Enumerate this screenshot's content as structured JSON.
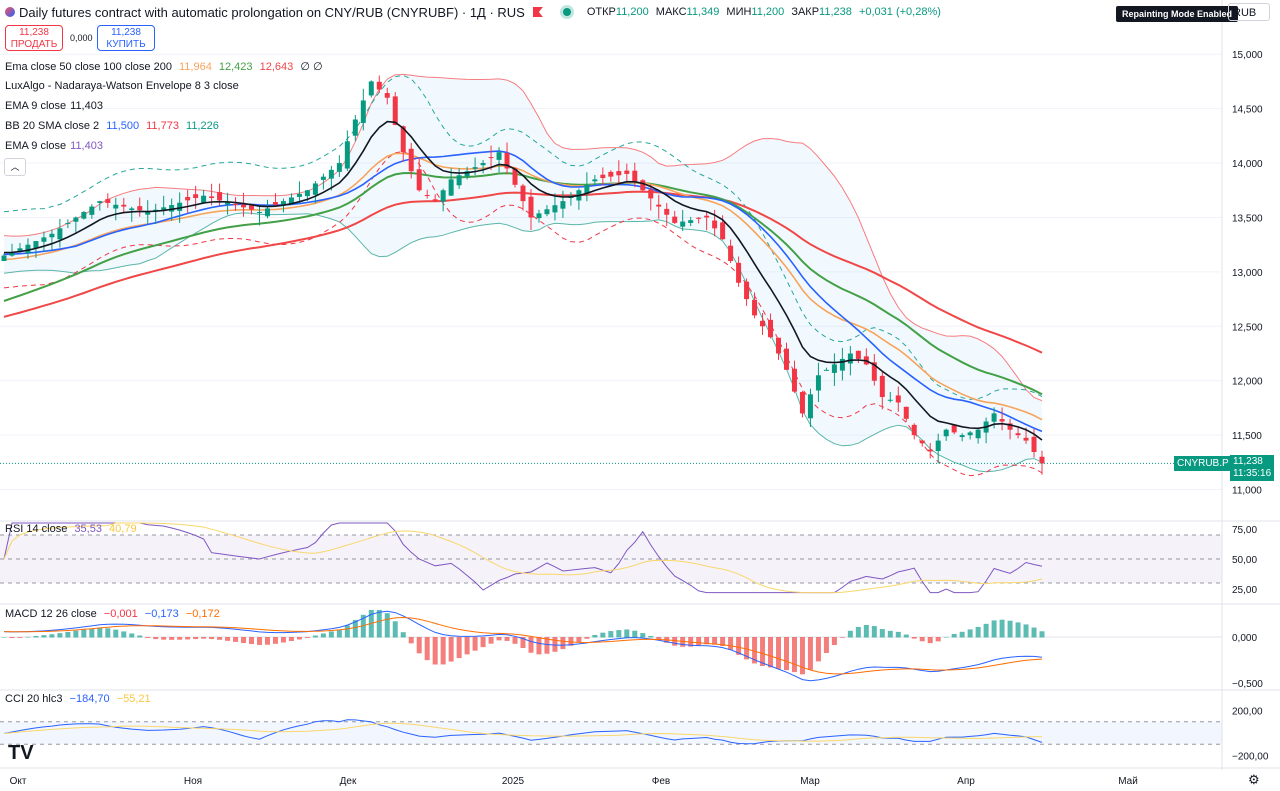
{
  "header": {
    "title": "Daily futures contract with automatic prolongation on CNY/RUB (CNYRUBF) · 1Д · RUS",
    "ohlc": [
      {
        "label": "ОТКР",
        "value": "11,200"
      },
      {
        "label": "МАКС",
        "value": "11,349"
      },
      {
        "label": "МИН",
        "value": "11,200"
      },
      {
        "label": "ЗАКР",
        "value": "11,238"
      }
    ],
    "change": "+0,031 (+0,28%)",
    "repaint_badge": "Repainting Mode Enabled",
    "currency": "RUB"
  },
  "trade": {
    "sell_price": "11,238",
    "sell_label": "ПРОДАТЬ",
    "spread": "0,000",
    "buy_price": "11,238",
    "buy_label": "КУПИТЬ"
  },
  "legends": {
    "ema_multi": {
      "label": "Ema close 50 close 100 close 200",
      "v1": "11,964",
      "v2": "12,423",
      "v3": "12,643",
      "v4": "∅ ∅"
    },
    "nw": {
      "label": "LuxAlgo - Nadaraya-Watson Envelope 8 3 close"
    },
    "ema9a": {
      "label": "EMA 9 close",
      "v1": "11,403"
    },
    "bb": {
      "label": "BB 20 SMA close 2",
      "v1": "11,500",
      "v2": "11,773",
      "v3": "11,226"
    },
    "ema9b": {
      "label": "EMA 9 close",
      "v1": "11,403"
    },
    "rsi": {
      "label": "RSI 14 close",
      "v1": "35,53",
      "v2": "40,79"
    },
    "macd": {
      "label": "MACD 12 26 close",
      "v1": "−0,001",
      "v2": "−0,173",
      "v3": "−0,172"
    },
    "cci": {
      "label": "CCI 20 hlc3",
      "v1": "−184,70",
      "v2": "−55,21"
    }
  },
  "price_tag": {
    "symbol": "CNYRUB.P",
    "price": "11,238",
    "timer": "11:35:16"
  },
  "colors": {
    "up": "#089981",
    "down": "#f23645",
    "ema9": "#131722",
    "bb_basis": "#2962ff",
    "ema50": "#f7a35c",
    "ema100": "#43a047",
    "ema200": "#f04747",
    "bb_upper": "#f77c80",
    "bb_lower": "#5ab5a8",
    "rsi": "#7e57c2",
    "rsi_ma": "#f9d76b",
    "macd": "#2962ff",
    "macd_signal": "#ff6d00",
    "cci": "#2962ff",
    "cci_ma": "#f9d76b"
  },
  "logo": "TV",
  "chart_data": {
    "type": "candlestick",
    "x_ticks": [
      "Окт",
      "Ноя",
      "Дек",
      "2025",
      "Фев",
      "Мар",
      "Апр",
      "Май"
    ],
    "y_ticks": [
      "15,000",
      "14,500",
      "14,000",
      "13,500",
      "13,000",
      "12,500",
      "12,000",
      "11,500",
      "11,000"
    ],
    "ylim": [
      10.95,
      15.25
    ],
    "rsi_ticks": [
      "75,00",
      "50,00",
      "25,00"
    ],
    "macd_ticks": [
      "0,000",
      "−0,500"
    ],
    "cci_ticks": [
      "200,00",
      "−200,00"
    ],
    "price_anchors": [
      [
        0,
        13.15
      ],
      [
        6,
        13.35
      ],
      [
        12,
        13.65
      ],
      [
        18,
        13.55
      ],
      [
        25,
        13.7
      ],
      [
        32,
        13.55
      ],
      [
        38,
        13.75
      ],
      [
        42,
        14.0
      ],
      [
        44,
        14.4
      ],
      [
        46,
        14.75
      ],
      [
        48,
        14.6
      ],
      [
        50,
        14.1
      ],
      [
        52,
        13.75
      ],
      [
        54,
        13.65
      ],
      [
        56,
        13.85
      ],
      [
        60,
        14.0
      ],
      [
        62,
        14.1
      ],
      [
        64,
        13.8
      ],
      [
        66,
        13.5
      ],
      [
        70,
        13.65
      ],
      [
        74,
        13.85
      ],
      [
        78,
        13.9
      ],
      [
        80,
        13.75
      ],
      [
        84,
        13.45
      ],
      [
        88,
        13.5
      ],
      [
        90,
        13.3
      ],
      [
        92,
        12.9
      ],
      [
        94,
        12.6
      ],
      [
        96,
        12.4
      ],
      [
        98,
        12.1
      ],
      [
        100,
        11.7
      ],
      [
        102,
        12.05
      ],
      [
        104,
        12.15
      ],
      [
        106,
        12.25
      ],
      [
        108,
        12.15
      ],
      [
        110,
        11.85
      ],
      [
        112,
        11.8
      ],
      [
        114,
        11.5
      ],
      [
        116,
        11.35
      ],
      [
        118,
        11.55
      ],
      [
        120,
        11.5
      ],
      [
        122,
        11.55
      ],
      [
        124,
        11.7
      ],
      [
        126,
        11.55
      ],
      [
        128,
        11.45
      ],
      [
        130,
        11.24
      ]
    ]
  }
}
